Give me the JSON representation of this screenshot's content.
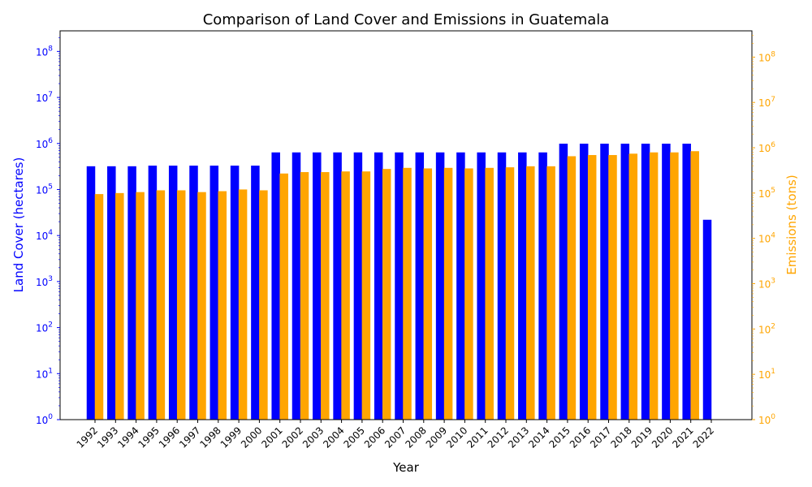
{
  "chart_data": {
    "type": "bar",
    "title": "Comparison of Land Cover and Emissions in Guatemala",
    "xlabel": "Year",
    "ylabel_left": "Land Cover (hectares)",
    "ylabel_right": "Emissions (tons)",
    "yscale": "log",
    "ylim_left": [
      1,
      280000000
    ],
    "ylim_right": [
      1,
      380000000
    ],
    "ticks_left": [
      {
        "base": "10",
        "exp": "0",
        "value": 1
      },
      {
        "base": "10",
        "exp": "1",
        "value": 10
      },
      {
        "base": "10",
        "exp": "2",
        "value": 100
      },
      {
        "base": "10",
        "exp": "3",
        "value": 1000
      },
      {
        "base": "10",
        "exp": "4",
        "value": 10000
      },
      {
        "base": "10",
        "exp": "5",
        "value": 100000
      },
      {
        "base": "10",
        "exp": "6",
        "value": 1000000
      },
      {
        "base": "10",
        "exp": "7",
        "value": 10000000
      },
      {
        "base": "10",
        "exp": "8",
        "value": 100000000
      }
    ],
    "ticks_right": [
      {
        "base": "10",
        "exp": "0",
        "value": 1
      },
      {
        "base": "10",
        "exp": "1",
        "value": 10
      },
      {
        "base": "10",
        "exp": "2",
        "value": 100
      },
      {
        "base": "10",
        "exp": "3",
        "value": 1000
      },
      {
        "base": "10",
        "exp": "4",
        "value": 10000
      },
      {
        "base": "10",
        "exp": "5",
        "value": 100000
      },
      {
        "base": "10",
        "exp": "6",
        "value": 1000000
      },
      {
        "base": "10",
        "exp": "7",
        "value": 10000000
      },
      {
        "base": "10",
        "exp": "8",
        "value": 100000000
      }
    ],
    "categories": [
      "1992",
      "1993",
      "1994",
      "1995",
      "1996",
      "1997",
      "1998",
      "1999",
      "2000",
      "2001",
      "2002",
      "2003",
      "2004",
      "2005",
      "2006",
      "2007",
      "2008",
      "2009",
      "2010",
      "2011",
      "2012",
      "2013",
      "2014",
      "2015",
      "2016",
      "2017",
      "2018",
      "2019",
      "2020",
      "2021",
      "2022"
    ],
    "series": [
      {
        "axis": "left",
        "color": "#0000ff",
        "values": [
          320000,
          320000,
          320000,
          330000,
          330000,
          330000,
          330000,
          330000,
          330000,
          640000,
          640000,
          640000,
          640000,
          640000,
          640000,
          640000,
          640000,
          640000,
          640000,
          640000,
          640000,
          640000,
          640000,
          990000,
          990000,
          990000,
          990000,
          990000,
          990000,
          990000,
          22000
        ]
      },
      {
        "axis": "right",
        "color": "#ffa500",
        "values": [
          95000,
          100000,
          105000,
          115000,
          115000,
          105000,
          110000,
          120000,
          115000,
          270000,
          290000,
          290000,
          300000,
          300000,
          340000,
          360000,
          350000,
          360000,
          350000,
          360000,
          370000,
          390000,
          390000,
          650000,
          690000,
          690000,
          740000,
          790000,
          790000,
          840000,
          null
        ]
      }
    ],
    "legend": "none",
    "grid": false
  }
}
